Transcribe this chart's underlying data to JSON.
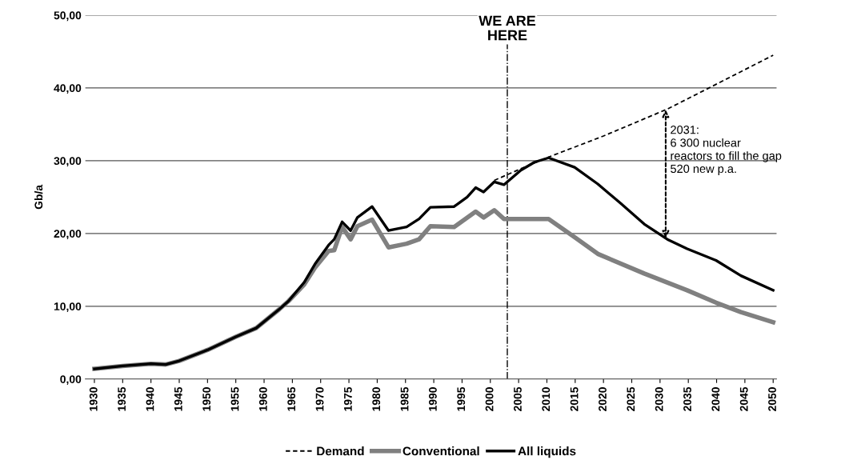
{
  "chart_data": {
    "type": "line",
    "ylabel": "Gb/a",
    "xlim": [
      1928.4,
      2050.6
    ],
    "ylim": [
      0,
      50
    ],
    "xticks": [
      1930,
      1935,
      1940,
      1945,
      1950,
      1955,
      1960,
      1965,
      1970,
      1975,
      1980,
      1985,
      1990,
      1995,
      2000,
      2005,
      2010,
      2015,
      2020,
      2025,
      2030,
      2035,
      2040,
      2045,
      2050
    ],
    "yticks": [
      {
        "value": 0,
        "label": "0,00"
      },
      {
        "value": 10,
        "label": "10,00"
      },
      {
        "value": 20,
        "label": "20,00"
      },
      {
        "value": 30,
        "label": "30,00"
      },
      {
        "value": 40,
        "label": "40,00"
      },
      {
        "value": 50,
        "label": "50,00"
      }
    ],
    "grid": "y",
    "legend": "bottom",
    "marker": "none",
    "series": [
      {
        "name": "Demand",
        "color": "#000000",
        "line_style": "dashed",
        "x": [
          2000.7,
          2005.4,
          2010.3,
          2020,
          2031.3,
          2038.4,
          2050
        ],
        "values": [
          27.3,
          28.9,
          30.5,
          33.4,
          37.1,
          39.9,
          44.5
        ]
      },
      {
        "name": "Conventional",
        "color": "#808080",
        "line_style": "solid",
        "x": [
          1930,
          1935,
          1940,
          1942.6,
          1945,
          1950,
          1955,
          1958.6,
          1962.7,
          1964.3,
          1967.1,
          1969,
          1971.4,
          1972.4,
          1973.8,
          1975.3,
          1976.5,
          1979.1,
          1982,
          1985.2,
          1987.4,
          1989.4,
          1993.6,
          1997.4,
          1998.8,
          2000.7,
          2002.4,
          2010.3,
          2014.9,
          2019,
          2027.2,
          2034.8,
          2039.9,
          2044.3,
          2050
        ],
        "values": [
          1.4,
          1.8,
          2.1,
          2.0,
          2.5,
          4.0,
          5.8,
          7.0,
          9.6,
          10.7,
          13.0,
          15.3,
          17.6,
          17.7,
          20.9,
          19.2,
          21.0,
          21.9,
          18.1,
          18.6,
          19.2,
          21.0,
          20.9,
          23.0,
          22.2,
          23.2,
          22.0,
          22.0,
          19.5,
          17.2,
          14.5,
          12.2,
          10.5,
          9.2,
          7.8
        ]
      },
      {
        "name": "All liquids",
        "color": "#000000",
        "line_style": "solid",
        "x": [
          1930,
          1935,
          1940,
          1942.6,
          1945,
          1950,
          1955,
          1958.6,
          1962.7,
          1964.3,
          1967.1,
          1969,
          1971.4,
          1972.4,
          1973.8,
          1975.3,
          1976.5,
          1979.1,
          1982,
          1985.2,
          1987.4,
          1989.4,
          1993.6,
          1995.9,
          1997.4,
          1998.8,
          2000.7,
          2002.4,
          2005.4,
          2007.8,
          2010.3,
          2014.9,
          2019,
          2023.1,
          2027.2,
          2031.3,
          2034.8,
          2039.9,
          2044.3,
          2050
        ],
        "values": [
          1.4,
          1.8,
          2.1,
          2.0,
          2.5,
          4.0,
          5.8,
          7.0,
          9.6,
          10.7,
          13.3,
          15.8,
          18.4,
          19.2,
          21.6,
          20.4,
          22.2,
          23.7,
          20.4,
          20.9,
          22.0,
          23.6,
          23.7,
          25.0,
          26.3,
          25.7,
          27.1,
          26.7,
          28.7,
          29.8,
          30.4,
          29.1,
          26.8,
          24.1,
          21.3,
          19.2,
          17.9,
          16.3,
          14.2,
          12.2
        ]
      }
    ],
    "ref_lines": [
      {
        "axis": "x",
        "value": 2003,
        "label": "WE ARE\nHERE",
        "color": "#000000",
        "line_style": "dashdot"
      }
    ],
    "annotations": [
      {
        "text": "2031:\n6 300 nuclear\nreactors to fill the gap\n520 new p.a.",
        "x": 2031,
        "y": 37.0
      }
    ]
  }
}
